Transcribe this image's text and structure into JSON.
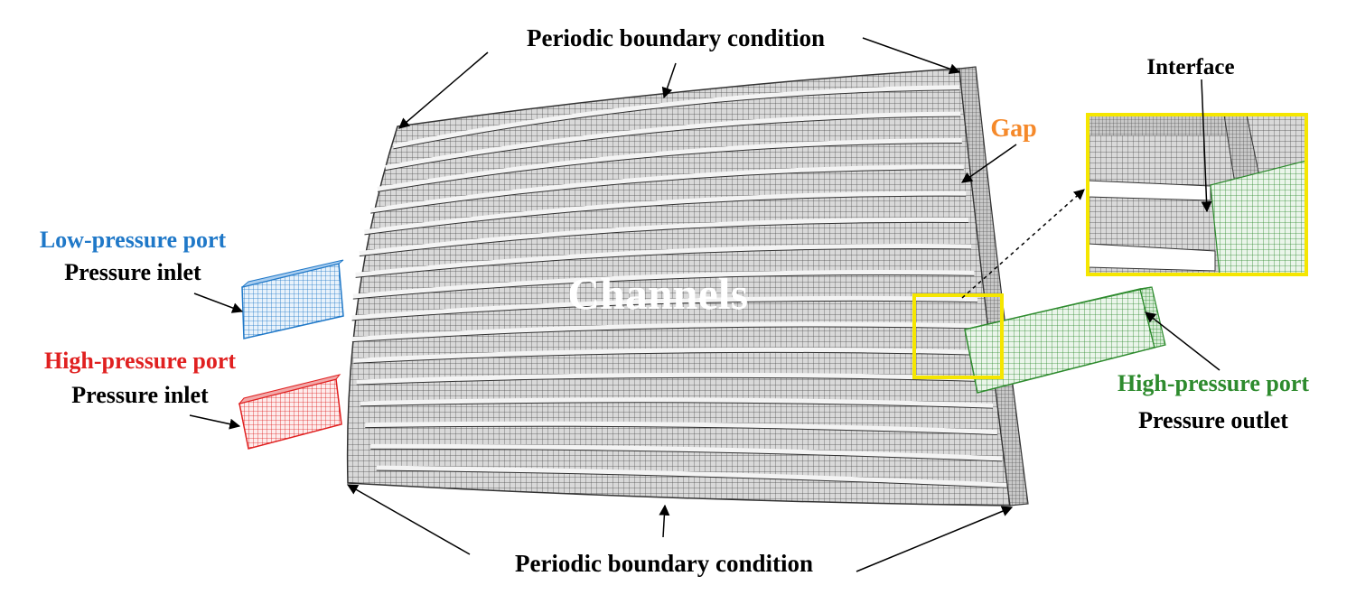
{
  "labels": {
    "periodic_top": "Periodic boundary condition",
    "periodic_bottom": "Periodic boundary condition",
    "gap": "Gap",
    "interface": "Interface",
    "channels": "Channels",
    "low_port_title": "Low-pressure port",
    "low_port_bc": "Pressure inlet",
    "high_port_left_title": "High-pressure port",
    "high_port_left_bc": "Pressure inlet",
    "high_port_right_title": "High-pressure port",
    "high_port_right_bc": "Pressure outlet"
  },
  "colors": {
    "low_pressure": "#1f78c8",
    "high_pressure_inlet": "#e02020",
    "high_pressure_outlet": "#2e8b2e",
    "gap": "#f5892a",
    "highlight_box": "#f5e600",
    "mesh": "#3a3a3a",
    "text": "#000000",
    "channels_text": "#ffffff"
  }
}
